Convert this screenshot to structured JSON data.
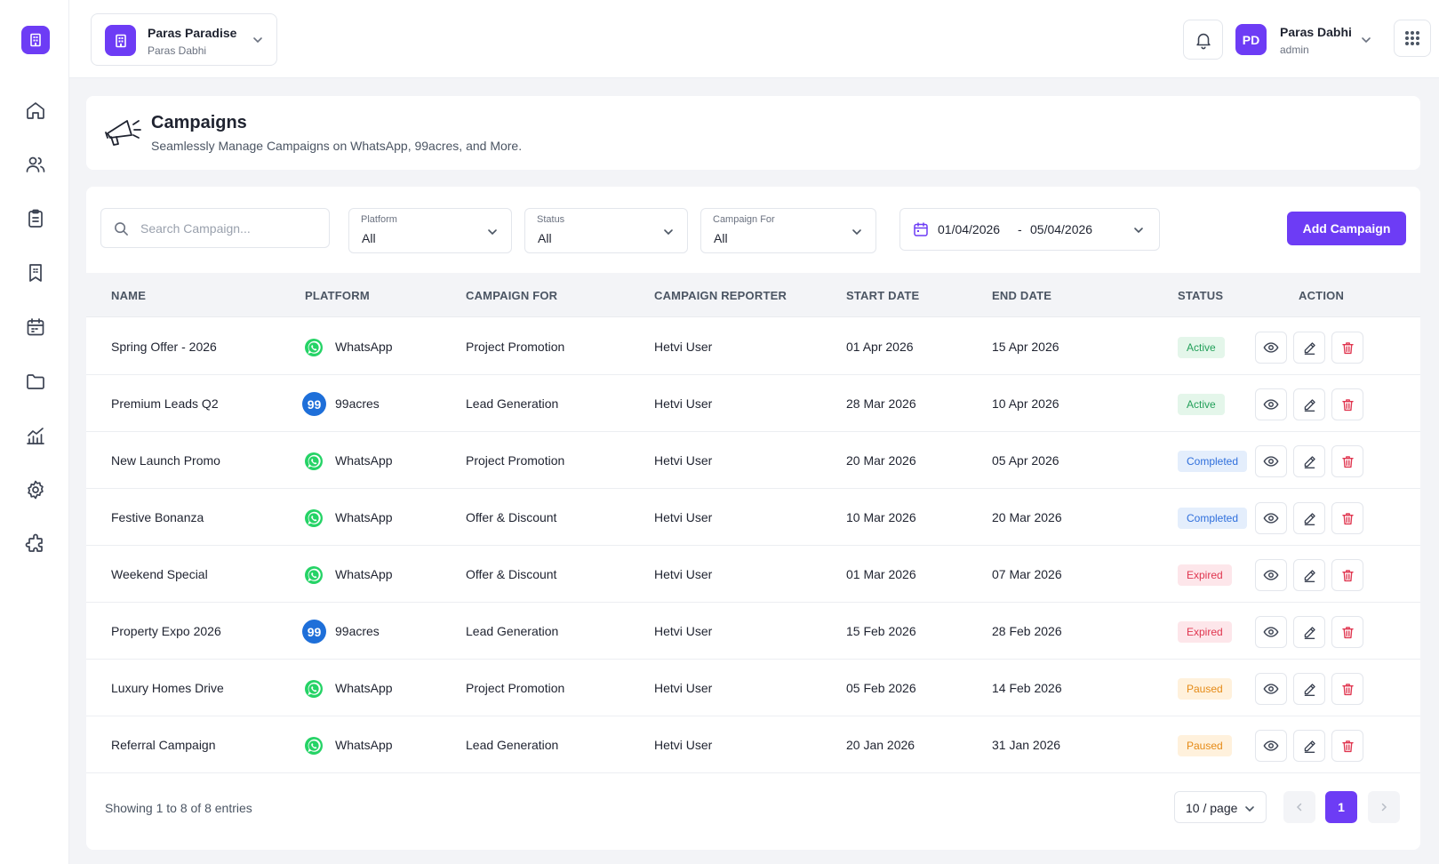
{
  "colors": {
    "accent": "#6d3cf5",
    "whatsapp": "#25d366",
    "acres99": "#1e6fd9",
    "delete": "#e0354f"
  },
  "sidebar": {
    "logo_icon": "building-icon",
    "items": [
      {
        "name": "home-icon"
      },
      {
        "name": "users-icon"
      },
      {
        "name": "clipboard-icon"
      },
      {
        "name": "bookmark-building-icon"
      },
      {
        "name": "calendar-icon"
      },
      {
        "name": "folder-icon"
      },
      {
        "name": "analytics-icon"
      },
      {
        "name": "gear-icon"
      },
      {
        "name": "puzzle-icon"
      }
    ]
  },
  "header": {
    "project_name": "Paras Paradise",
    "project_owner": "Paras Dabhi",
    "user_initials": "PD",
    "user_name": "Paras Dabhi",
    "user_role": "admin"
  },
  "page": {
    "title": "Campaigns",
    "subtitle": "Seamlessly Manage Campaigns on WhatsApp, 99acres, and More."
  },
  "filters": {
    "search_placeholder": "Search Campaign...",
    "platform_label": "Platform",
    "platform_value": "All",
    "status_label": "Status",
    "status_value": "All",
    "campaign_for_label": "Campaign For",
    "campaign_for_value": "All",
    "date_from": "01/04/2026",
    "date_separator": "-",
    "date_to": "05/04/2026",
    "add_button": "Add Campaign"
  },
  "table": {
    "columns": [
      "NAME",
      "PLATFORM",
      "CAMPAIGN FOR",
      "CAMPAIGN REPORTER",
      "START DATE",
      "END DATE",
      "STATUS",
      "ACTION"
    ],
    "rows": [
      {
        "name": "Spring Offer - 2026",
        "platform": "WhatsApp",
        "campaign_for": "Project Promotion",
        "reporter": "Hetvi User",
        "start": "01 Apr 2026",
        "end": "15 Apr 2026",
        "status": "Active"
      },
      {
        "name": "Premium Leads Q2",
        "platform": "99acres",
        "campaign_for": "Lead Generation",
        "reporter": "Hetvi User",
        "start": "28 Mar 2026",
        "end": "10 Apr 2026",
        "status": "Active"
      },
      {
        "name": "New Launch Promo",
        "platform": "WhatsApp",
        "campaign_for": "Project Promotion",
        "reporter": "Hetvi User",
        "start": "20 Mar 2026",
        "end": "05 Apr 2026",
        "status": "Completed"
      },
      {
        "name": "Festive Bonanza",
        "platform": "WhatsApp",
        "campaign_for": "Offer & Discount",
        "reporter": "Hetvi User",
        "start": "10 Mar 2026",
        "end": "20 Mar 2026",
        "status": "Completed"
      },
      {
        "name": "Weekend Special",
        "platform": "WhatsApp",
        "campaign_for": "Offer & Discount",
        "reporter": "Hetvi User",
        "start": "01 Mar 2026",
        "end": "07 Mar 2026",
        "status": "Expired"
      },
      {
        "name": "Property Expo 2026",
        "platform": "99acres",
        "campaign_for": "Lead Generation",
        "reporter": "Hetvi User",
        "start": "15 Feb 2026",
        "end": "28 Feb 2026",
        "status": "Expired"
      },
      {
        "name": "Luxury Homes Drive",
        "platform": "WhatsApp",
        "campaign_for": "Project Promotion",
        "reporter": "Hetvi User",
        "start": "05 Feb 2026",
        "end": "14 Feb 2026",
        "status": "Paused"
      },
      {
        "name": "Referral Campaign",
        "platform": "WhatsApp",
        "campaign_for": "Lead Generation",
        "reporter": "Hetvi User",
        "start": "20 Jan 2026",
        "end": "31 Jan 2026",
        "status": "Paused"
      }
    ]
  },
  "footer": {
    "entries_text": "Showing 1 to 8 of 8 entries",
    "page_size": "10 / page",
    "current_page": "1"
  },
  "icons": {
    "acres_badge_text": "99"
  }
}
